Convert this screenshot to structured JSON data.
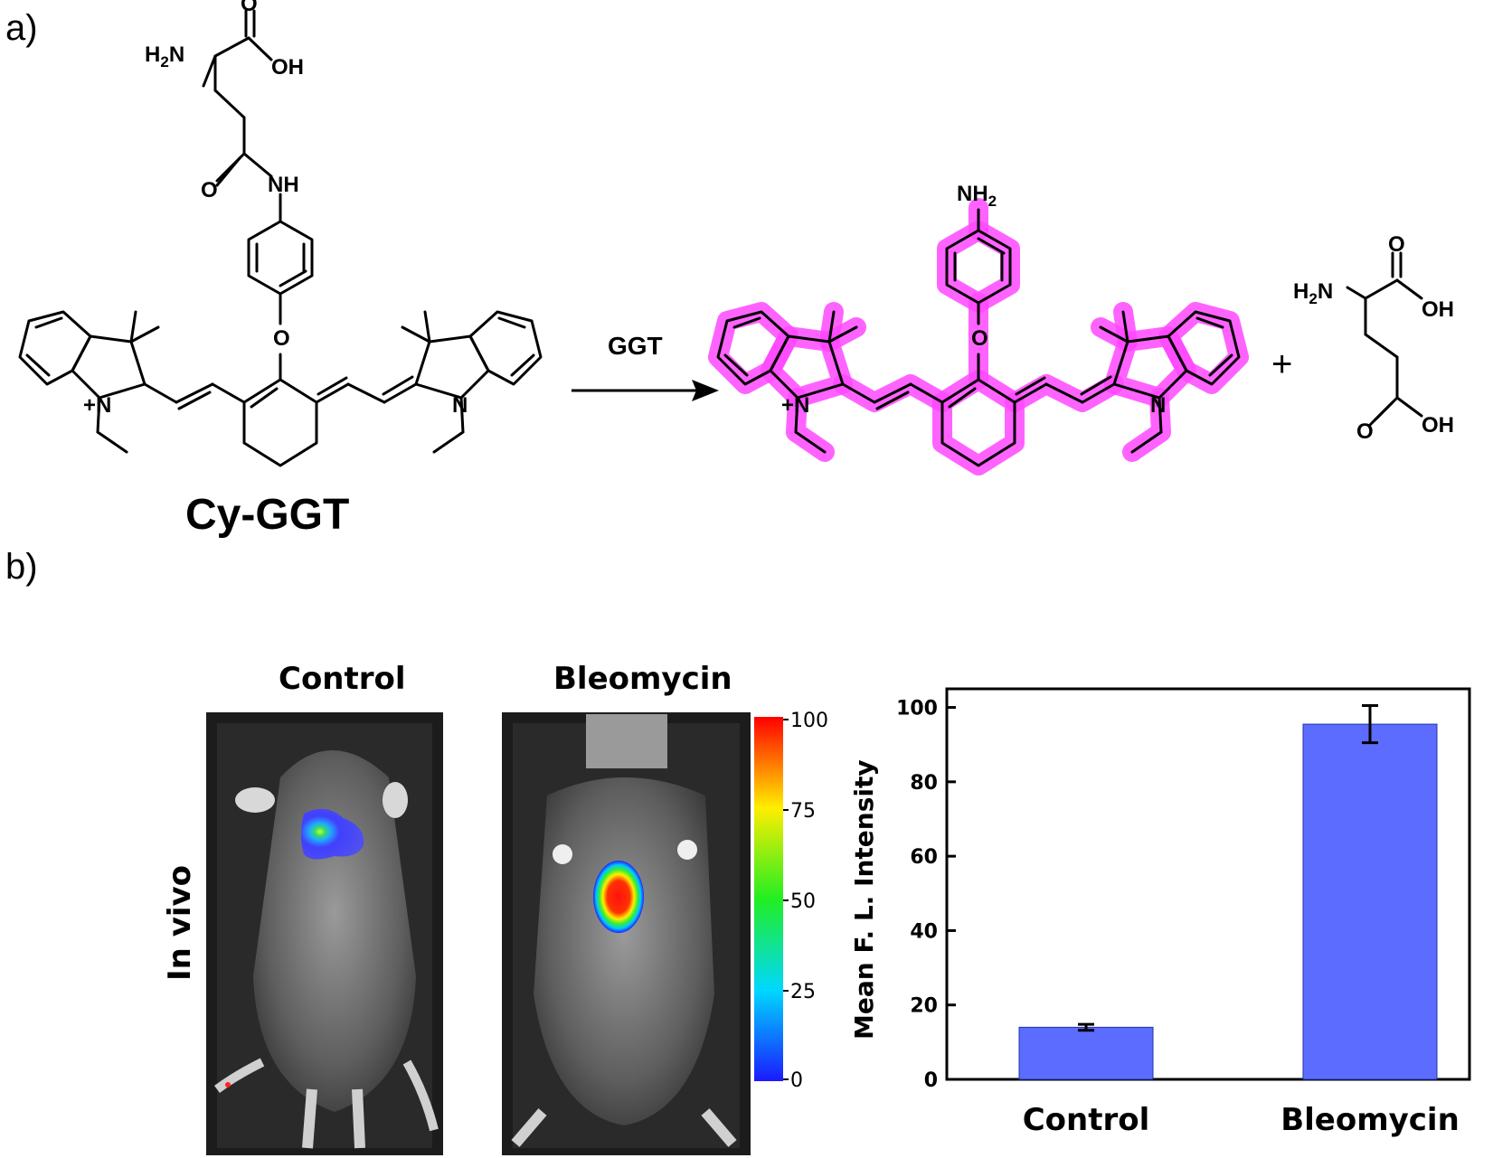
{
  "panel_a": {
    "label": "a)",
    "compound_name": "Cy-GGT",
    "arrow_label": "GGT",
    "plus_sign": "+",
    "atoms": {
      "h2n": "H2N",
      "oh": "OH",
      "o": "O",
      "nh": "NH",
      "nh2": "NH2",
      "n": "N",
      "n_plus": "+N"
    },
    "highlight_color": "#ff48ff"
  },
  "panel_b": {
    "label": "b)",
    "side_label": "In vivo",
    "images": [
      {
        "title": "Control"
      },
      {
        "title": "Bleomycin"
      }
    ],
    "colorbar": {
      "ticks": [
        "100",
        "75",
        "50",
        "25",
        "0"
      ],
      "colors": [
        "#ff0000",
        "#ffff00",
        "#00ff00",
        "#00ffff",
        "#0000ff"
      ]
    }
  },
  "chart_data": {
    "type": "bar",
    "categories": [
      "Control",
      "Bleomycin"
    ],
    "values": [
      14,
      95.5
    ],
    "errors": [
      0.8,
      5
    ],
    "ylabel": "Mean F. L. Intensity",
    "xlabel": "",
    "ylim": [
      0,
      105
    ],
    "yticks": [
      0,
      20,
      40,
      60,
      80,
      100
    ],
    "bar_color": "#5b6cff",
    "grid": false
  }
}
